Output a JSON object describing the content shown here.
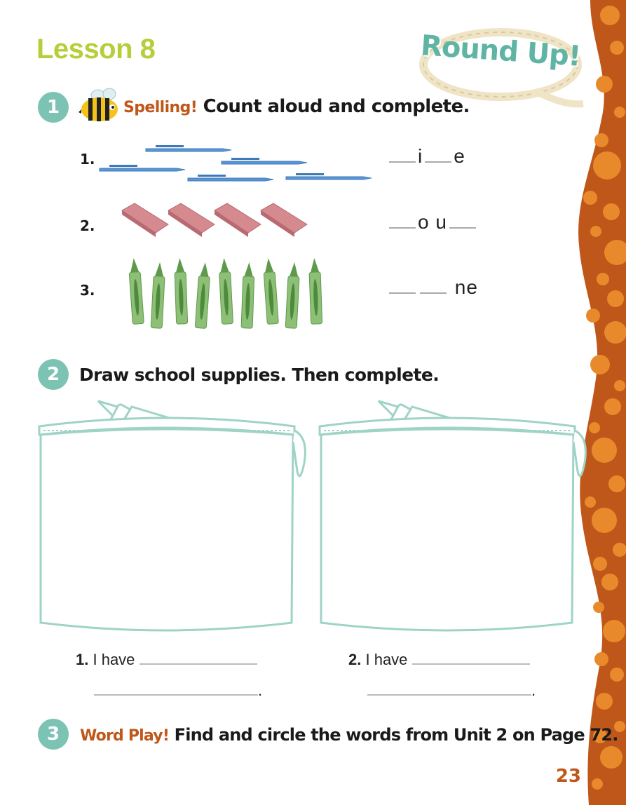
{
  "lesson_title": "Lesson 8",
  "badge_text": "Round Up!",
  "page_number": "23",
  "activity1": {
    "number": "1",
    "accent_label": "Spelling!",
    "instruction": "Count aloud and complete.",
    "items": [
      {
        "num": "1.",
        "letters": [
          "i",
          "e"
        ],
        "picture": "pens",
        "count": 5
      },
      {
        "num": "2.",
        "letters": [
          "o",
          "u"
        ],
        "picture": "erasers",
        "count": 4
      },
      {
        "num": "3.",
        "letters": [
          "n",
          "e"
        ],
        "picture": "crayons",
        "count": 9
      }
    ]
  },
  "activity2": {
    "number": "2",
    "instruction": "Draw school supplies. Then complete.",
    "sentences": [
      {
        "num": "1.",
        "text": "I have",
        "end": "."
      },
      {
        "num": "2.",
        "text": "I have",
        "end": "."
      }
    ]
  },
  "activity3": {
    "number": "3",
    "accent_label": "Word Play!",
    "instruction": "Find and circle the words from Unit 2 on Page 72."
  },
  "colors": {
    "lesson_green": "#b5cf3a",
    "teal": "#7cc3b3",
    "accent_orange": "#c0571a",
    "border_orange": "#c0571a",
    "dot_orange": "#e88a2c"
  }
}
